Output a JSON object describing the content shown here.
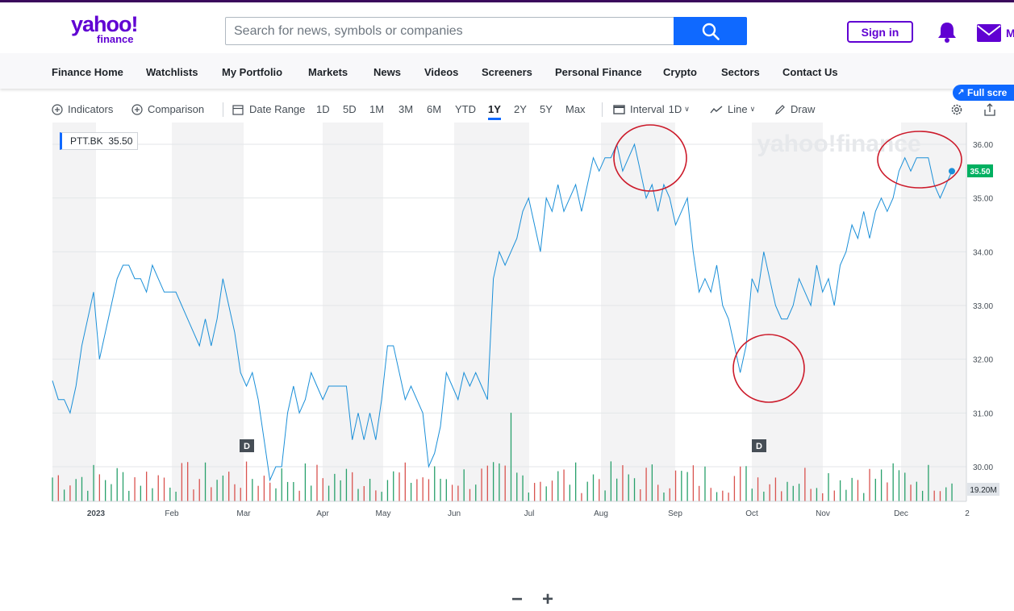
{
  "header": {
    "logo_line1": "yahoo!",
    "logo_line2": "finance",
    "search_placeholder": "Search for news, symbols or companies",
    "signin_label": "Sign in",
    "mail_label": "M"
  },
  "nav": {
    "items": [
      "Finance Home",
      "Watchlists",
      "My Portfolio",
      "Markets",
      "News",
      "Videos",
      "Screeners",
      "Personal Finance",
      "Crypto",
      "Sectors",
      "Contact Us"
    ],
    "fullscreen_label": "Full scre"
  },
  "toolbar": {
    "indicators": "Indicators",
    "comparison": "Comparison",
    "date_range": "Date Range",
    "ranges": [
      "1D",
      "5D",
      "1M",
      "3M",
      "6M",
      "YTD",
      "1Y",
      "2Y",
      "5Y",
      "Max"
    ],
    "active_range": "1Y",
    "interval_label": "Interval",
    "interval_value": "1D",
    "chart_type": "Line",
    "draw": "Draw"
  },
  "chart_data": {
    "type": "line",
    "symbol": "PTT.BK",
    "last_price": "35.50",
    "watermark": "yahoo!finance",
    "volume_label": "19.20M",
    "dividend_marker": "D",
    "y_ticks": [
      "36.00",
      "35.00",
      "34.00",
      "33.00",
      "32.00",
      "31.00",
      "30.00"
    ],
    "ylim": [
      29.5,
      36.5
    ],
    "x_labels": [
      "2023",
      "Feb",
      "Mar",
      "Apr",
      "May",
      "Jun",
      "Jul",
      "Aug",
      "Sep",
      "Oct",
      "Nov",
      "Dec",
      "2"
    ],
    "series": [
      {
        "color": "#1a8fd8",
        "values": [
          31.6,
          31.25,
          31.25,
          31.0,
          31.5,
          32.25,
          32.75,
          33.25,
          32.0,
          32.5,
          33.0,
          33.5,
          33.75,
          33.75,
          33.5,
          33.5,
          33.25,
          33.75,
          33.5,
          33.25,
          33.25,
          33.25,
          33.0,
          32.75,
          32.5,
          32.25,
          32.75,
          32.25,
          32.75,
          33.5,
          33.0,
          32.5,
          31.75,
          31.5,
          31.75,
          31.25,
          30.5,
          29.75,
          30.0,
          30.0,
          31.0,
          31.5,
          31.0,
          31.25,
          31.75,
          31.5,
          31.25,
          31.5,
          31.5,
          31.5,
          31.5,
          30.5,
          31.0,
          30.5,
          31.0,
          30.5,
          31.25,
          32.25,
          32.25,
          31.75,
          31.25,
          31.5,
          31.25,
          31.0,
          30.0,
          30.25,
          30.75,
          31.75,
          31.5,
          31.25,
          31.75,
          31.5,
          31.75,
          31.5,
          31.25,
          33.5,
          34.0,
          33.75,
          34.0,
          34.25,
          34.75,
          35.0,
          34.5,
          34.0,
          35.0,
          34.75,
          35.25,
          34.75,
          35.0,
          35.25,
          34.75,
          35.25,
          35.75,
          35.5,
          35.75,
          35.75,
          36.0,
          35.5,
          35.75,
          36.0,
          35.5,
          35.0,
          35.25,
          34.75,
          35.25,
          35.0,
          34.5,
          34.75,
          35.0,
          34.0,
          33.25,
          33.5,
          33.25,
          33.75,
          33.0,
          32.75,
          32.25,
          31.75,
          32.25,
          33.5,
          33.25,
          34.0,
          33.5,
          33.0,
          32.75,
          32.75,
          33.0,
          33.5,
          33.25,
          33.0,
          33.75,
          33.25,
          33.5,
          33.0,
          33.75,
          34.0,
          34.5,
          34.25,
          34.75,
          34.25,
          34.75,
          35.0,
          34.75,
          35.0,
          35.5,
          35.75,
          35.5,
          35.75,
          35.75,
          35.75,
          35.25,
          35.0,
          35.25,
          35.5
        ]
      }
    ],
    "annotations": "red circles around the August peak, the October low and the December high"
  }
}
